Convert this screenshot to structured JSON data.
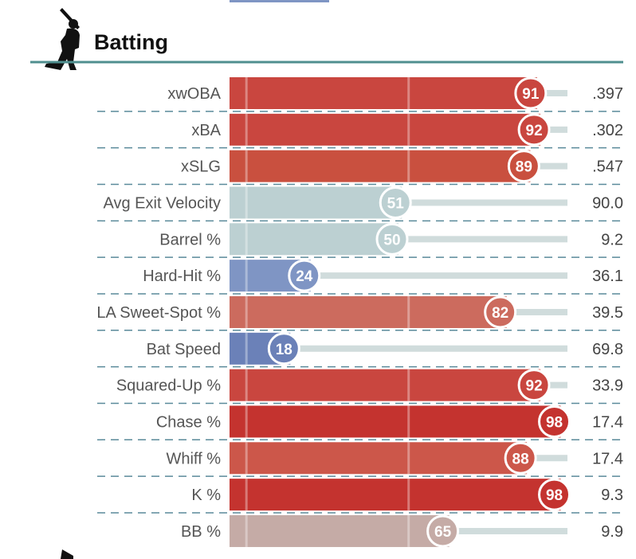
{
  "section": {
    "title": "Batting",
    "icon": "batter-silhouette-icon"
  },
  "colors": {
    "divider": "#4f8f8f",
    "track": "#d0dcdc",
    "gridline": "#ffffff",
    "circle_stroke": "#ffffff",
    "row_separator": "#5a8a9a"
  },
  "chart_data": {
    "type": "bar",
    "title": "Batting",
    "xlim": [
      0,
      100
    ],
    "categories": [
      "xwOBA",
      "xBA",
      "xSLG",
      "Avg Exit Velocity",
      "Barrel %",
      "Hard-Hit %",
      "LA Sweet-Spot %",
      "Bat Speed",
      "Squared-Up %",
      "Chase %",
      "Whiff %",
      "K %",
      "BB %"
    ],
    "series": [
      {
        "values": [
          91,
          92,
          89,
          51,
          50,
          24,
          82,
          18,
          92,
          98,
          88,
          98,
          65
        ]
      }
    ],
    "stat_values": [
      ".397",
      ".302",
      ".547",
      "90.0",
      "9.2",
      "36.1",
      "39.5",
      "69.8",
      "33.9",
      "17.4",
      "17.4",
      "9.3",
      "9.9"
    ],
    "bar_colors": [
      "#c9463f",
      "#c9463f",
      "#c9503f",
      "#bcd0d2",
      "#bcd0d2",
      "#7f95c4",
      "#cc6b5e",
      "#6b81b8",
      "#c9463f",
      "#c4332f",
      "#cc574a",
      "#c4332f",
      "#c5aba6"
    ]
  }
}
